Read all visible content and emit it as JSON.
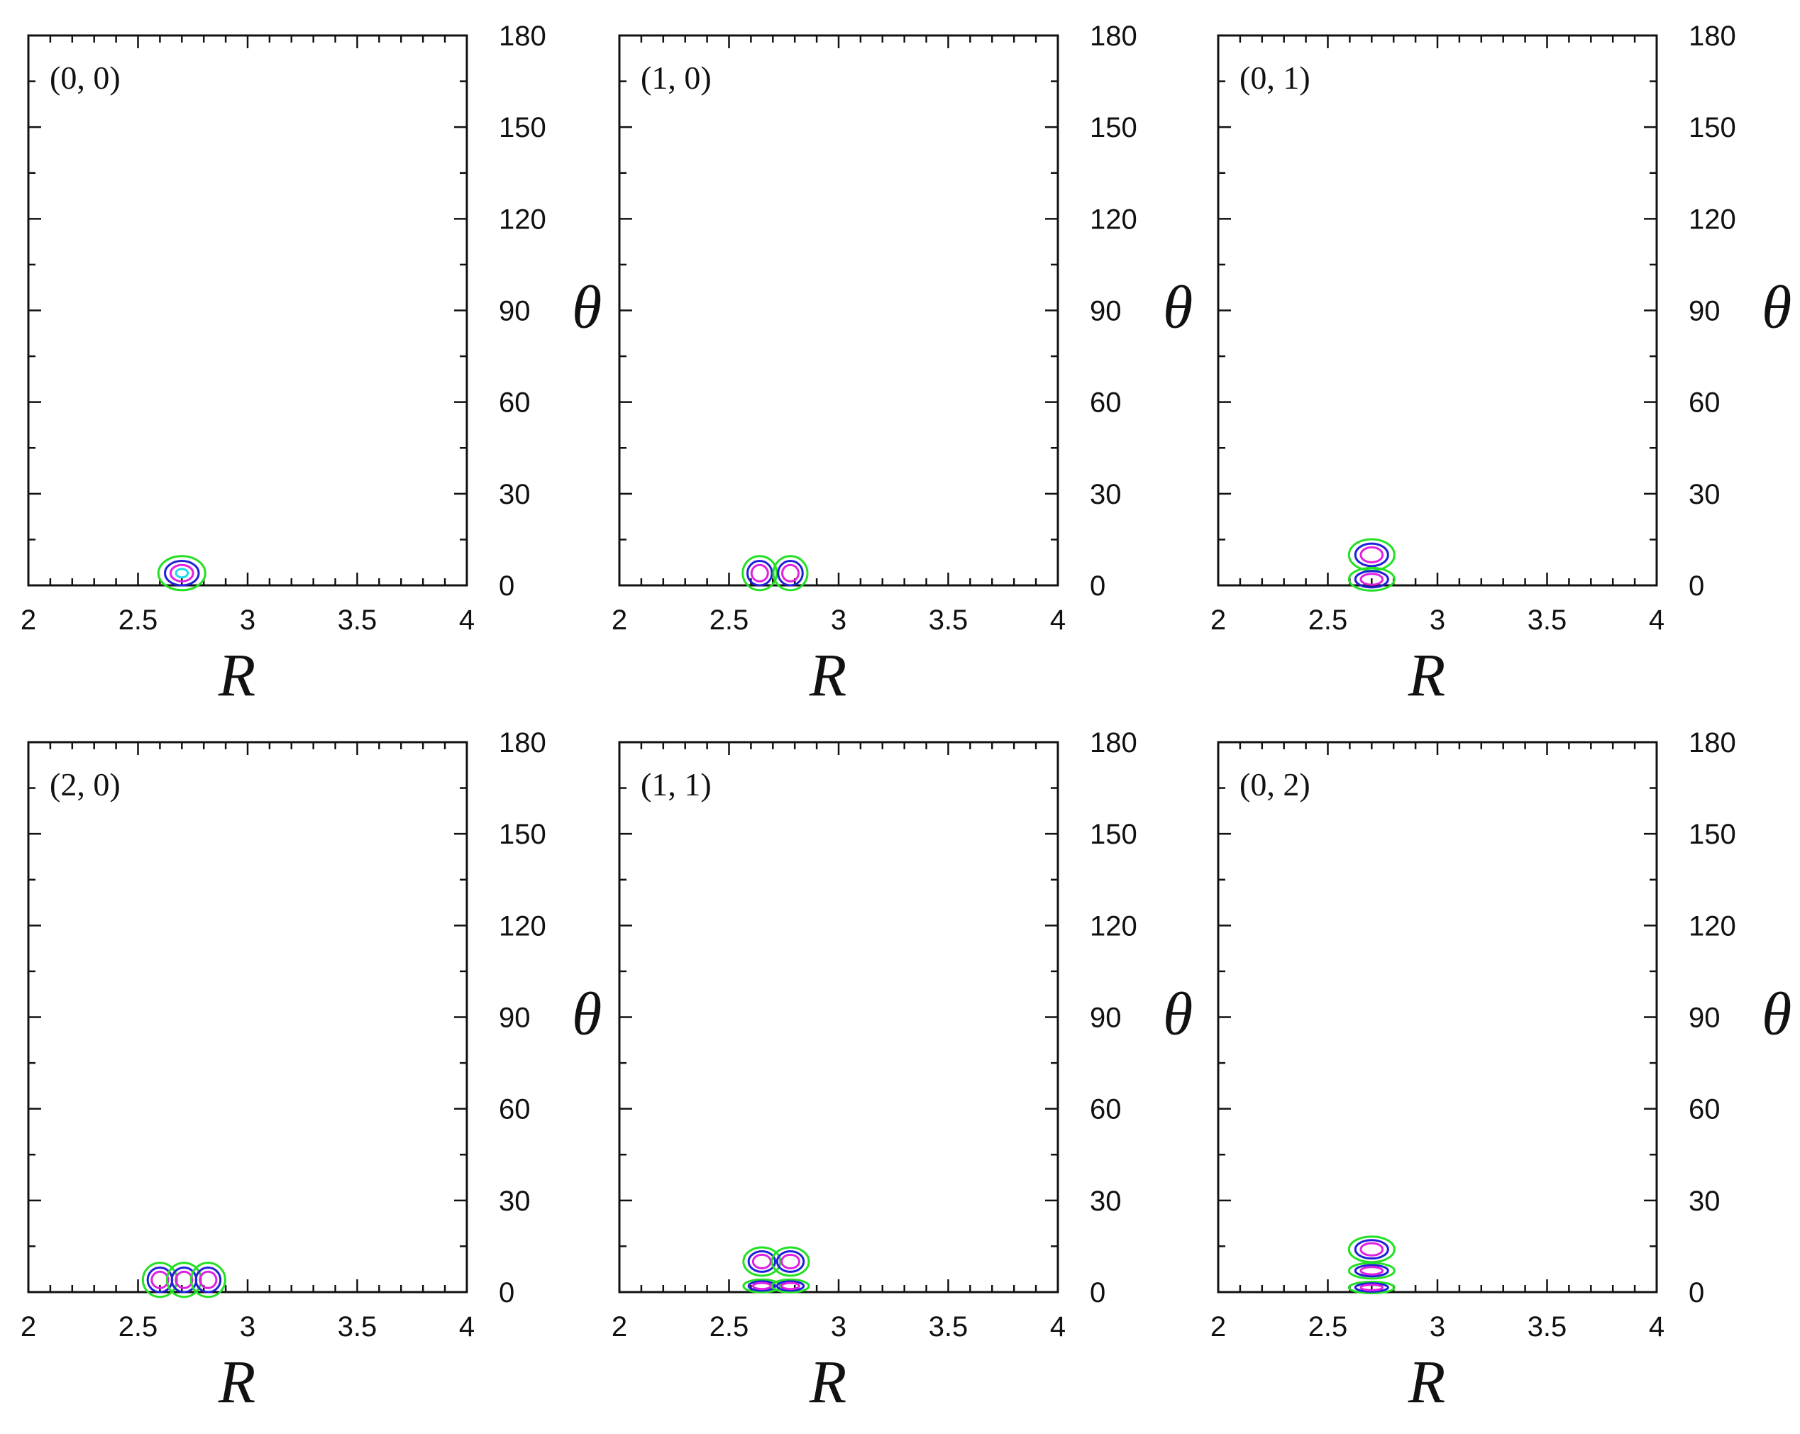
{
  "chart_data": [
    {
      "type": "contour",
      "label": "(0, 0)",
      "xlabel": "R",
      "ylabel": "θ",
      "xlim": [
        2,
        4
      ],
      "ylim": [
        0,
        180
      ],
      "xticks": [
        "2",
        "2.5",
        "3",
        "3.5",
        "4"
      ],
      "yticks": [
        "0",
        "30",
        "60",
        "90",
        "120",
        "150",
        "180"
      ],
      "lobes": [
        {
          "R": 2.7,
          "theta": 4,
          "sign": "+"
        }
      ]
    },
    {
      "type": "contour",
      "label": "(1, 0)",
      "xlabel": "R",
      "ylabel": "θ",
      "xlim": [
        2,
        4
      ],
      "ylim": [
        0,
        180
      ],
      "xticks": [
        "2",
        "2.5",
        "3",
        "3.5",
        "4"
      ],
      "yticks": [
        "0",
        "30",
        "60",
        "90",
        "120",
        "150",
        "180"
      ],
      "lobes": [
        {
          "R": 2.64,
          "theta": 4,
          "sign": "+"
        },
        {
          "R": 2.78,
          "theta": 4,
          "sign": "-"
        }
      ]
    },
    {
      "type": "contour",
      "label": "(0, 1)",
      "xlabel": "R",
      "ylabel": "θ",
      "xlim": [
        2,
        4
      ],
      "ylim": [
        0,
        180
      ],
      "xticks": [
        "2",
        "2.5",
        "3",
        "3.5",
        "4"
      ],
      "yticks": [
        "0",
        "30",
        "60",
        "90",
        "120",
        "150",
        "180"
      ],
      "lobes": [
        {
          "R": 2.7,
          "theta": 10,
          "sign": "+"
        },
        {
          "R": 2.7,
          "theta": 2,
          "sign": "-"
        }
      ]
    },
    {
      "type": "contour",
      "label": "(2, 0)",
      "xlabel": "R",
      "ylabel": "θ",
      "xlim": [
        2,
        4
      ],
      "ylim": [
        0,
        180
      ],
      "xticks": [
        "2",
        "2.5",
        "3",
        "3.5",
        "4"
      ],
      "yticks": [
        "0",
        "30",
        "60",
        "90",
        "120",
        "150",
        "180"
      ],
      "lobes": [
        {
          "R": 2.6,
          "theta": 4,
          "sign": "+"
        },
        {
          "R": 2.71,
          "theta": 4,
          "sign": "-"
        },
        {
          "R": 2.82,
          "theta": 4,
          "sign": "+"
        }
      ]
    },
    {
      "type": "contour",
      "label": "(1, 1)",
      "xlabel": "R",
      "ylabel": "θ",
      "xlim": [
        2,
        4
      ],
      "ylim": [
        0,
        180
      ],
      "xticks": [
        "2",
        "2.5",
        "3",
        "3.5",
        "4"
      ],
      "yticks": [
        "0",
        "30",
        "60",
        "90",
        "120",
        "150",
        "180"
      ],
      "lobes": [
        {
          "R": 2.65,
          "theta": 10,
          "sign": "+"
        },
        {
          "R": 2.78,
          "theta": 10,
          "sign": "-"
        },
        {
          "R": 2.65,
          "theta": 2,
          "sign": "-"
        },
        {
          "R": 2.78,
          "theta": 2,
          "sign": "+"
        }
      ]
    },
    {
      "type": "contour",
      "label": "(0, 2)",
      "xlabel": "R",
      "ylabel": "θ",
      "xlim": [
        2,
        4
      ],
      "ylim": [
        0,
        180
      ],
      "xticks": [
        "2",
        "2.5",
        "3",
        "3.5",
        "4"
      ],
      "yticks": [
        "0",
        "30",
        "60",
        "90",
        "120",
        "150",
        "180"
      ],
      "lobes": [
        {
          "R": 2.7,
          "theta": 14,
          "sign": "+"
        },
        {
          "R": 2.7,
          "theta": 7,
          "sign": "-"
        },
        {
          "R": 2.7,
          "theta": 1.5,
          "sign": "+"
        }
      ]
    }
  ],
  "colors": {
    "outer_contour": "#22e022",
    "mid_contour": "#2020d8",
    "inner_contour": "#e020e0",
    "core_contour": "#20d8e8",
    "axes": "#111111"
  }
}
